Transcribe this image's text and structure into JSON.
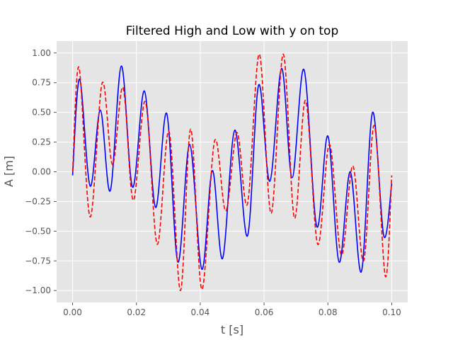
{
  "chart_data": {
    "type": "line",
    "title": "Filtered High and Low with y on top",
    "xlabel": "t [s]",
    "ylabel": "A [m]",
    "xlim": [
      -0.005,
      0.105
    ],
    "ylim": [
      -1.1,
      1.1
    ],
    "xticks": [
      0.0,
      0.02,
      0.04,
      0.06,
      0.08,
      0.1
    ],
    "xtick_labels": [
      "0.00",
      "0.02",
      "0.04",
      "0.06",
      "0.08",
      "0.10"
    ],
    "yticks": [
      -1.0,
      -0.75,
      -0.5,
      -0.25,
      0.0,
      0.25,
      0.5,
      0.75,
      1.0
    ],
    "ytick_labels": [
      "−1.00",
      "−0.75",
      "−0.50",
      "−0.25",
      "0.00",
      "0.25",
      "0.50",
      "0.75",
      "1.00"
    ],
    "grid": true,
    "legend": "none",
    "background": "#e5e5e5",
    "series": [
      {
        "color": "#0000ff",
        "style": "solid",
        "x": [
          0.0,
          0.0022,
          0.0055,
          0.0087,
          0.0118,
          0.0153,
          0.0188,
          0.0225,
          0.026,
          0.0295,
          0.033,
          0.0367,
          0.0405,
          0.0438,
          0.047,
          0.0508,
          0.0548,
          0.0583,
          0.0618,
          0.0655,
          0.0688,
          0.0725,
          0.0765,
          0.08,
          0.0835,
          0.087,
          0.0905,
          0.094,
          0.0975,
          0.1
        ],
        "y": [
          -0.03,
          0.78,
          -0.12,
          0.52,
          -0.16,
          0.89,
          -0.13,
          0.68,
          -0.3,
          0.49,
          -0.76,
          0.23,
          -0.82,
          0.01,
          -0.73,
          0.35,
          -0.54,
          0.73,
          -0.08,
          0.87,
          -0.05,
          0.86,
          -0.46,
          0.3,
          -0.76,
          -0.0,
          -0.84,
          0.5,
          -0.54,
          -0.1
        ]
      },
      {
        "color": "#ff0000",
        "style": "dashed",
        "x": [
          0.0,
          0.002,
          0.0055,
          0.0093,
          0.0125,
          0.0158,
          0.019,
          0.0228,
          0.0265,
          0.0302,
          0.0338,
          0.037,
          0.0405,
          0.0445,
          0.048,
          0.0515,
          0.0548,
          0.0585,
          0.0622,
          0.066,
          0.0695,
          0.073,
          0.0768,
          0.0805,
          0.0842,
          0.0878,
          0.0912,
          0.0945,
          0.098,
          0.1
        ],
        "y": [
          0.0,
          0.88,
          -0.38,
          0.75,
          0.06,
          0.71,
          -0.24,
          0.59,
          -0.61,
          0.34,
          -1.0,
          0.36,
          -0.99,
          0.26,
          -0.33,
          0.33,
          -0.27,
          0.99,
          -0.35,
          0.99,
          -0.39,
          0.6,
          -0.61,
          0.23,
          -0.7,
          0.05,
          -0.75,
          0.39,
          -0.88,
          -0.03
        ]
      }
    ]
  }
}
